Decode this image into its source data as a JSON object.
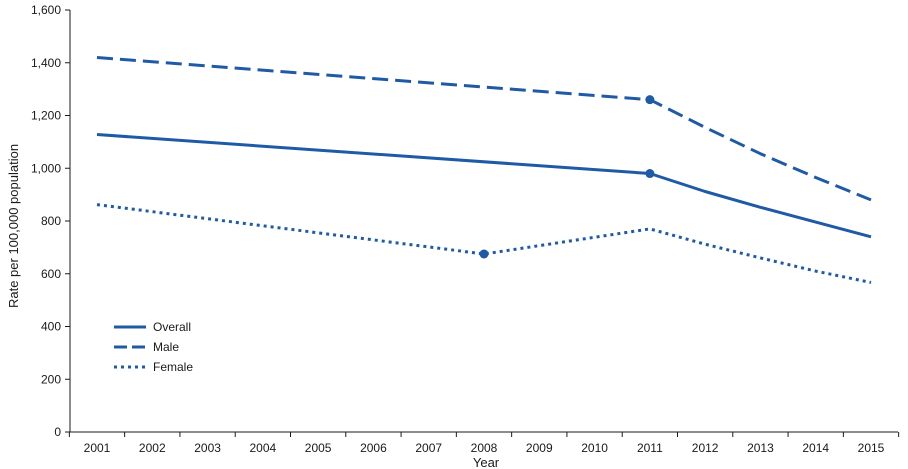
{
  "chart_data": {
    "type": "line",
    "title": "",
    "xlabel": "Year",
    "ylabel": "Rate per 100,000 population",
    "categories": [
      "2001",
      "2002",
      "2003",
      "2004",
      "2005",
      "2006",
      "2007",
      "2008",
      "2009",
      "2010",
      "2011",
      "2012",
      "2013",
      "2014",
      "2015"
    ],
    "ylim": [
      0,
      1600
    ],
    "yticks": [
      0,
      200,
      400,
      600,
      800,
      1000,
      1200,
      1400,
      1600
    ],
    "ytick_labels": [
      "0",
      "200",
      "400",
      "600",
      "800",
      "1,000",
      "1,200",
      "1,400",
      "1,600"
    ],
    "grid": false,
    "legend_position": "bottom-left",
    "color": "#1f5aa6",
    "series": [
      {
        "name": "Overall",
        "style": "solid",
        "x": [
          2001,
          2011,
          2015
        ],
        "values": [
          1128,
          980,
          740
        ],
        "x_dense": [
          2001,
          2011,
          2012,
          2013,
          2014,
          2015
        ],
        "values_dense": [
          1128,
          980,
          912,
          852,
          796,
          740
        ],
        "marker_x": [
          2011
        ],
        "marker_values": [
          980
        ]
      },
      {
        "name": "Male",
        "style": "dashed",
        "x": [
          2001,
          2011,
          2015
        ],
        "values": [
          1420,
          1260,
          880
        ],
        "x_dense": [
          2001,
          2011,
          2012,
          2013,
          2014,
          2015
        ],
        "values_dense": [
          1420,
          1260,
          1155,
          1055,
          965,
          880
        ],
        "marker_x": [
          2011
        ],
        "marker_values": [
          1260
        ]
      },
      {
        "name": "Female",
        "style": "dotted",
        "x": [
          2001,
          2008,
          2011,
          2015
        ],
        "values": [
          862,
          675,
          770,
          567
        ],
        "x_dense": [
          2001,
          2008,
          2011,
          2012,
          2013,
          2014,
          2015
        ],
        "values_dense": [
          862,
          675,
          770,
          712,
          660,
          610,
          567
        ],
        "marker_x": [
          2008
        ],
        "marker_values": [
          675
        ]
      }
    ]
  }
}
